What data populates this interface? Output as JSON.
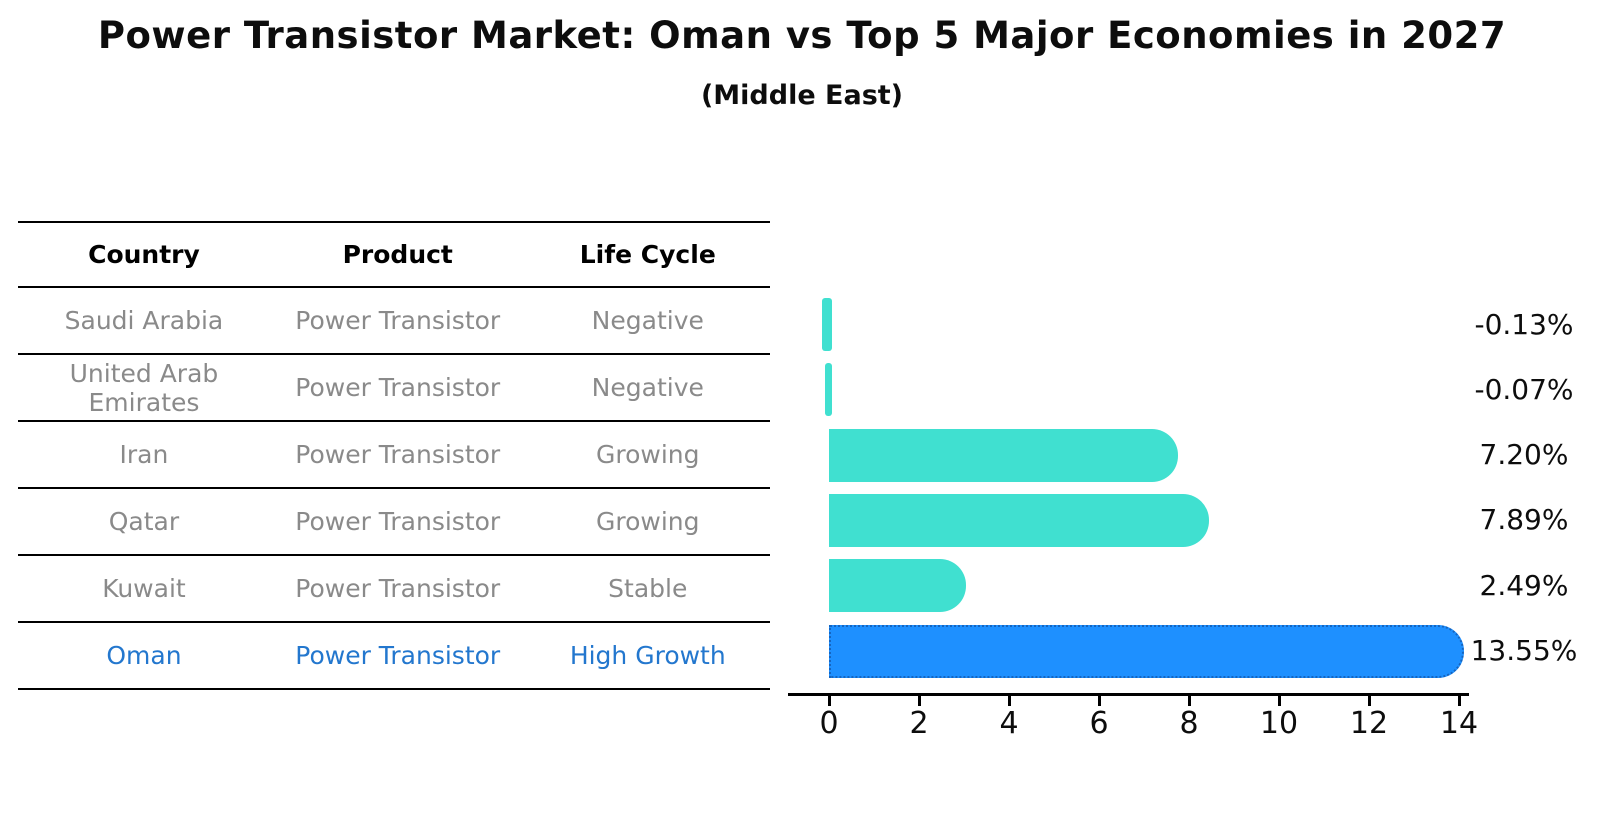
{
  "title": "Power Transistor Market: Oman vs Top 5 Major Economies in 2027",
  "subtitle": "(Middle East)",
  "table": {
    "headers": [
      "Country",
      "Product",
      "Life Cycle"
    ],
    "rows": [
      {
        "country": "Saudi Arabia",
        "product": "Power Transistor",
        "life_cycle": "Negative",
        "highlight": false
      },
      {
        "country": "United Arab Emirates",
        "product": "Power Transistor",
        "life_cycle": "Negative",
        "highlight": false
      },
      {
        "country": "Iran",
        "product": "Power Transistor",
        "life_cycle": "Growing",
        "highlight": false
      },
      {
        "country": "Qatar",
        "product": "Power Transistor",
        "life_cycle": "Growing",
        "highlight": false
      },
      {
        "country": "Kuwait",
        "product": "Power Transistor",
        "life_cycle": "Stable",
        "highlight": false
      },
      {
        "country": "Oman",
        "product": "Power Transistor",
        "life_cycle": "High Growth",
        "highlight": true
      }
    ]
  },
  "chart_data": {
    "type": "bar",
    "orientation": "horizontal",
    "title": "Power Transistor Market: Oman vs Top 5 Major Economies in 2027",
    "subtitle": "(Middle East)",
    "categories": [
      "Saudi Arabia",
      "United Arab Emirates",
      "Iran",
      "Qatar",
      "Kuwait",
      "Oman"
    ],
    "values": [
      -0.13,
      -0.07,
      7.2,
      7.89,
      2.49,
      13.55
    ],
    "value_labels": [
      "-0.13%",
      "-0.07%",
      "7.20%",
      "7.89%",
      "2.49%",
      "13.55%"
    ],
    "unit": "%",
    "xticks": [
      "0",
      "2",
      "4",
      "6",
      "8",
      "10",
      "12",
      "14"
    ],
    "xlim": [
      -0.9,
      14.2
    ],
    "grid": false,
    "legend": false,
    "bar_color": "#40E0D0",
    "highlight_color": "#1E90FF",
    "highlight_border_color": "#1565C0",
    "highlight_text_color": "#2377ce",
    "row_text_color": "#8a8a8a",
    "highlight_index": 5
  }
}
